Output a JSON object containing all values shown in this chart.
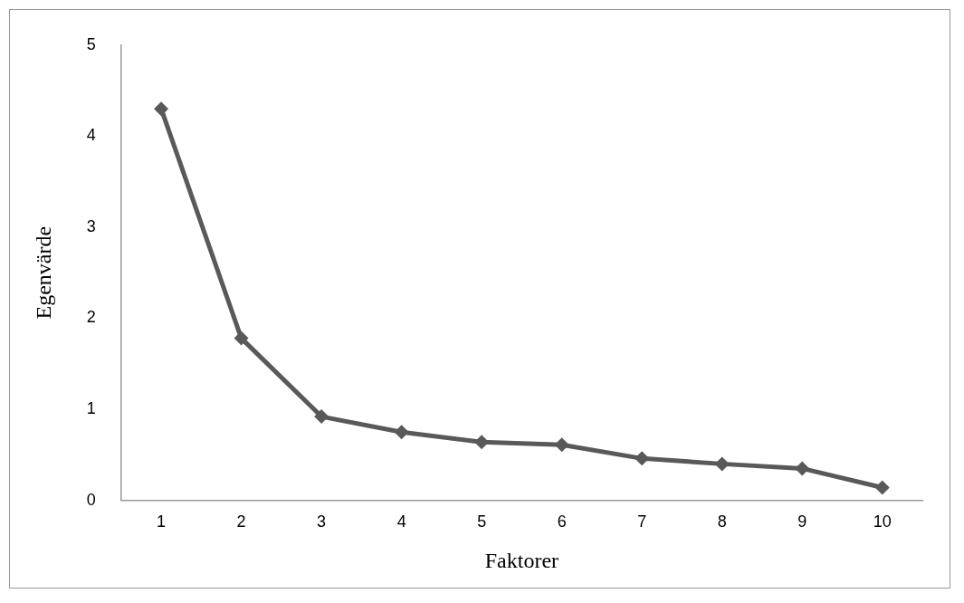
{
  "chart_data": {
    "type": "line",
    "xlabel": "Faktorer",
    "ylabel": "Egenvärde",
    "categories": [
      "1",
      "2",
      "3",
      "4",
      "5",
      "6",
      "7",
      "8",
      "9",
      "10"
    ],
    "series": [
      {
        "color": "#595959",
        "values": [
          4.3,
          1.78,
          0.92,
          0.75,
          0.64,
          0.61,
          0.46,
          0.4,
          0.35,
          0.14
        ]
      }
    ],
    "ylim": [
      0,
      5
    ],
    "yticks": [
      0,
      1,
      2,
      3,
      4,
      5
    ],
    "grid": false,
    "legend": false,
    "marker": "diamond",
    "line_style": "solid"
  }
}
